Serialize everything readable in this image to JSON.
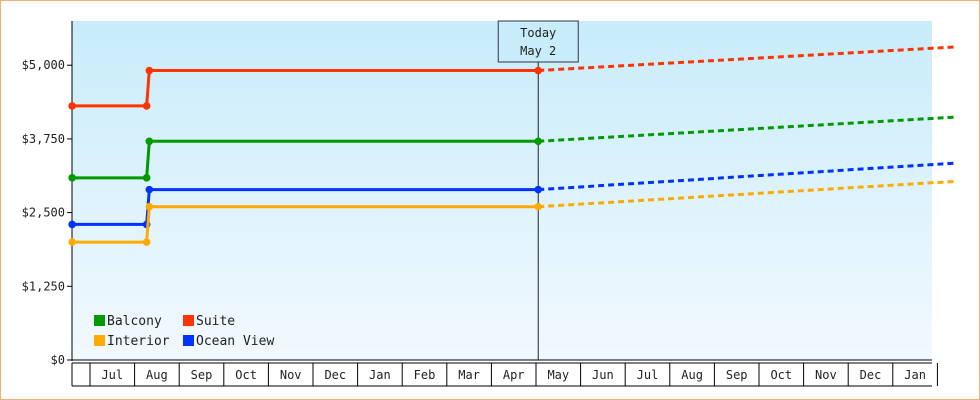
{
  "chart_data": {
    "type": "line",
    "title": "",
    "xlabel": "",
    "ylabel": "",
    "ylim": [
      0,
      5750
    ],
    "y_ticks": [
      {
        "value": 0,
        "label": "$0"
      },
      {
        "value": 1250,
        "label": "$1,250"
      },
      {
        "value": 2500,
        "label": "$2,500"
      },
      {
        "value": 3750,
        "label": "$3,750"
      },
      {
        "value": 5000,
        "label": "$5,000"
      }
    ],
    "months": [
      "Jul",
      "Aug",
      "Sep",
      "Oct",
      "Nov",
      "Dec",
      "Jan",
      "Feb",
      "Mar",
      "Apr",
      "May",
      "Jun",
      "Jul",
      "Aug",
      "Sep",
      "Oct",
      "Nov",
      "Dec",
      "Jan"
    ],
    "today_marker": {
      "line1": "Today",
      "line2": "May 2",
      "x": 10.05
    },
    "series": [
      {
        "name": "Suite",
        "color": "#ff3300",
        "history": [
          [
            -0.4,
            4310
          ],
          [
            1.27,
            4310
          ],
          [
            1.33,
            4910
          ],
          [
            10.05,
            4910
          ]
        ],
        "forecast": [
          [
            10.05,
            4910
          ],
          [
            19.4,
            5310
          ]
        ]
      },
      {
        "name": "Balcony",
        "color": "#009900",
        "history": [
          [
            -0.4,
            3090
          ],
          [
            1.27,
            3090
          ],
          [
            1.33,
            3710
          ],
          [
            10.05,
            3710
          ]
        ],
        "forecast": [
          [
            10.05,
            3710
          ],
          [
            19.4,
            4120
          ]
        ]
      },
      {
        "name": "Ocean View",
        "color": "#0033ff",
        "history": [
          [
            -0.4,
            2300
          ],
          [
            1.27,
            2300
          ],
          [
            1.33,
            2890
          ],
          [
            10.05,
            2890
          ]
        ],
        "forecast": [
          [
            10.05,
            2890
          ],
          [
            19.4,
            3340
          ]
        ]
      },
      {
        "name": "Interior",
        "color": "#ffaa00",
        "history": [
          [
            -0.4,
            2000
          ],
          [
            1.27,
            2000
          ],
          [
            1.33,
            2600
          ],
          [
            10.05,
            2600
          ]
        ],
        "forecast": [
          [
            10.05,
            2600
          ],
          [
            19.4,
            3030
          ]
        ]
      }
    ],
    "legend": [
      {
        "name": "Balcony",
        "color": "#009900"
      },
      {
        "name": "Suite",
        "color": "#ff3300"
      },
      {
        "name": "Interior",
        "color": "#ffaa00"
      },
      {
        "name": "Ocean View",
        "color": "#0033ff"
      }
    ],
    "legend_placement": "bottom-left",
    "grid": false,
    "background_gradient": [
      "#c8ecfa",
      "#f2f9fe"
    ]
  }
}
